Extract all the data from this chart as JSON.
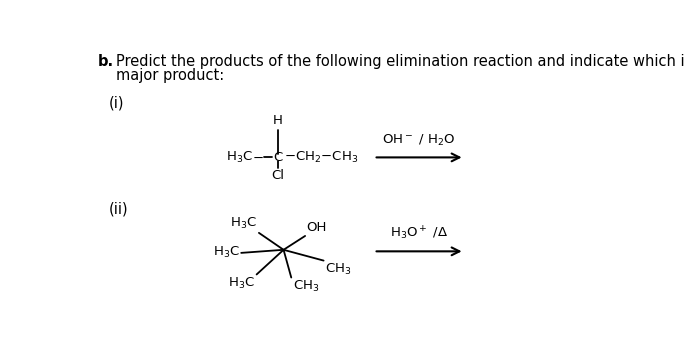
{
  "bg_color": "#ffffff",
  "text_color": "#000000",
  "title_b": "b.",
  "title_text": "Predict the products of the following elimination reaction and indicate which is the",
  "title_text2": "major product:",
  "label_i": "(i)",
  "label_ii": "(ii)",
  "font_size_main": 10.5,
  "font_size_chem": 9.5,
  "font_size_label": 10.5
}
